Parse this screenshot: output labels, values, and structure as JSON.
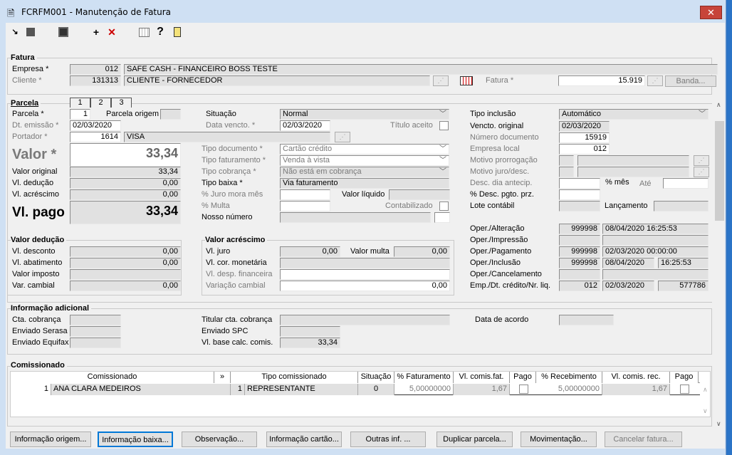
{
  "window": {
    "title": "FCRFM001 - Manutenção de Fatura",
    "close": "✕"
  },
  "toolbar": {
    "icons": [
      "select-arrow-icon",
      "cascade-icon",
      "save-icon",
      "add-icon",
      "delete-icon",
      "calendar-icon",
      "help-icon",
      "exit-door-icon"
    ]
  },
  "fatura": {
    "title": "Fatura",
    "empresa_label": "Empresa *",
    "empresa_code": "012",
    "empresa_name": "SAFE CASH - FINANCEIRO BOSS TESTE",
    "cliente_label": "Cliente *",
    "cliente_code": "131313",
    "cliente_name": "CLIENTE - FORNECEDOR",
    "fatura_label": "Fatura *",
    "fatura_value": "15.919",
    "banda_button": "Banda..."
  },
  "parcela": {
    "title": "Parcela",
    "tabs": [
      "1",
      "2",
      "3"
    ],
    "parcela_label": "Parcela *",
    "parcela_value": "1",
    "origem_label": "Parcela origem",
    "emissao_label": "Dt. emissão *",
    "emissao_value": "02/03/2020",
    "portador_label": "Portador *",
    "portador_code": "1614",
    "portador_name": "VISA",
    "valor_label": "Valor *",
    "valor_value": "33,34",
    "valor_original_label": "Valor original",
    "valor_original": "33,34",
    "deducao_label": "Vl. dedução",
    "deducao": "0,00",
    "acrescimo_label": "Vl. acréscimo",
    "acrescimo": "0,00",
    "pago_label": "Vl. pago",
    "pago": "33,34",
    "situacao_label": "Situação",
    "situacao": "Normal",
    "vencto_label": "Data vencto. *",
    "vencto": "02/03/2020",
    "titulo_aceito_label": "Título aceito",
    "tipo_doc_label": "Tipo documento *",
    "tipo_doc": "Cartão crédito",
    "tipo_fat_label": "Tipo faturamento *",
    "tipo_fat": "Venda à vista",
    "tipo_cob_label": "Tipo cobrança *",
    "tipo_cob": "Não está em cobrança",
    "tipo_baixa_label": "Tipo baixa *",
    "tipo_baixa": "Via faturamento",
    "juro_label": "% Juro mora mês",
    "valor_liquido_label": "Valor líquido",
    "multa_label": "% Multa",
    "contabilizado_label": "Contabilizado",
    "nosso_numero_label": "Nosso número",
    "tipo_inclusao_label": "Tipo inclusão",
    "tipo_inclusao": "Automático",
    "vencto_original_label": "Vencto. original",
    "vencto_original": "02/03/2020",
    "num_doc_label": "Número documento",
    "num_doc": "15919",
    "empresa_local_label": "Empresa local",
    "empresa_local": "012",
    "motivo_prorrog_label": "Motivo prorrogação",
    "motivo_juro_label": "Motivo juro/desc.",
    "desc_dia_label": "Desc. dia antecip.",
    "mes_label": "% mês",
    "ate_label": "Até",
    "desc_pgto_label": "% Desc. pgto. prz.",
    "lote_label": "Lote contábil",
    "lancamento_label": "Lançamento",
    "oper": [
      {
        "label": "Oper./Alteração",
        "code": "999998",
        "date": "08/04/2020 16:25:53"
      },
      {
        "label": "Oper./Impressão",
        "code": "",
        "date": ""
      },
      {
        "label": "Oper./Pagamento",
        "code": "999998",
        "date": "02/03/2020 00:00:00"
      },
      {
        "label": "Oper./Inclusão",
        "code": "999998",
        "date": "08/04/2020",
        "time": "16:25:53"
      },
      {
        "label": "Oper./Cancelamento",
        "code": "",
        "date": ""
      },
      {
        "label": "Emp./Dt. crédito/Nr. liq.",
        "code": "012",
        "date": "02/03/2020",
        "time": "577786"
      }
    ]
  },
  "valor_deducao": {
    "title": "Valor dedução",
    "rows": [
      {
        "label": "Vl. desconto",
        "value": "0,00"
      },
      {
        "label": "Vl. abatimento",
        "value": "0,00"
      },
      {
        "label": "Valor imposto",
        "value": ""
      },
      {
        "label": "Var. cambial",
        "value": "0,00"
      }
    ]
  },
  "valor_acrescimo": {
    "title": "Valor acréscimo",
    "juro_label": "Vl. juro",
    "juro": "0,00",
    "multa_label": "Valor multa",
    "multa": "0,00",
    "cor_label": "Vl. cor. monetária",
    "desp_label": "Vl. desp. financeira",
    "var_label": "Variação cambial",
    "var": "0,00"
  },
  "info": {
    "title": "Informação adicional",
    "cta_label": "Cta. cobrança",
    "serasa_label": "Enviado Serasa",
    "equifax_label": "Enviado Equifax",
    "titular_label": "Titular cta. cobrança",
    "spc_label": "Enviado SPC",
    "base_label": "Vl. base calc. comis.",
    "base": "33,34",
    "acordo_label": "Data de acordo"
  },
  "comissionado": {
    "title": "Comissionado",
    "headers": [
      "Comissionado",
      "»",
      "Tipo comissionado",
      "Situação",
      "% Faturamento",
      "Vl. comis.fat.",
      "Pago",
      "% Recebimento",
      "Vl. comis. rec.",
      "Pago"
    ],
    "rows": [
      {
        "code": "1",
        "name": "ANA CLARA MEDEIROS",
        "tipo_code": "1",
        "tipo": "REPRESENTANTE",
        "situacao": "0",
        "pct_fat": "5,00000000",
        "vl_fat": "1,67",
        "pct_rec": "5,00000000",
        "vl_rec": "1,67"
      }
    ]
  },
  "buttons": [
    "Informação origem...",
    "Informação baixa...",
    "Observação...",
    "Informação cartão...",
    "Outras inf. ...",
    "Duplicar parcela...",
    "Movimentação...",
    "Cancelar fatura..."
  ]
}
